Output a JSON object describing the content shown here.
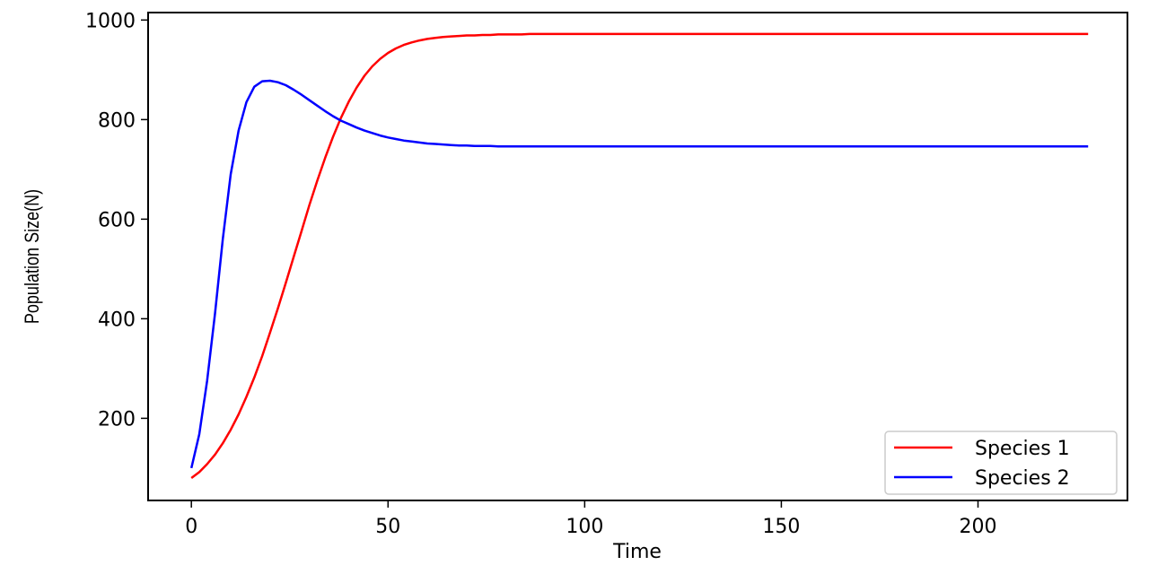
{
  "chart_data": {
    "type": "line",
    "title": "",
    "xlabel": "Time",
    "ylabel": "Population Size(N)",
    "xlim": [
      -11,
      238
    ],
    "ylim": [
      35,
      1015
    ],
    "xticks": [
      0,
      50,
      100,
      150,
      200
    ],
    "yticks": [
      200,
      400,
      600,
      800,
      1000
    ],
    "grid": false,
    "legend_position": "lower-right",
    "series": [
      {
        "name": "Species 1",
        "color": "#ff0000",
        "x": [
          0,
          2,
          4,
          6,
          8,
          10,
          12,
          14,
          16,
          18,
          20,
          22,
          24,
          26,
          28,
          30,
          32,
          34,
          36,
          38,
          40,
          42,
          44,
          46,
          48,
          50,
          52,
          54,
          56,
          58,
          60,
          62,
          64,
          66,
          68,
          70,
          72,
          74,
          76,
          78,
          80,
          82,
          84,
          86,
          88,
          90,
          92,
          94,
          96,
          98,
          100,
          105,
          110,
          120,
          130,
          140,
          150,
          160,
          170,
          180,
          190,
          200,
          210,
          220,
          228
        ],
        "values": [
          80,
          92,
          108,
          127,
          150,
          177,
          208,
          243,
          282,
          325,
          372,
          421,
          472,
          524,
          576,
          628,
          677,
          723,
          765,
          803,
          836,
          864,
          888,
          907,
          922,
          934,
          943,
          950,
          955,
          959,
          962,
          964,
          966,
          967,
          968,
          969,
          969,
          970,
          970,
          971,
          971,
          971,
          971,
          972,
          972,
          972,
          972,
          972,
          972,
          972,
          972,
          972,
          972,
          972,
          972,
          972,
          972,
          972,
          972,
          972,
          972,
          972,
          972,
          972,
          972
        ]
      },
      {
        "name": "Species 2",
        "color": "#0000ff",
        "x": [
          0,
          2,
          4,
          6,
          8,
          10,
          12,
          14,
          16,
          18,
          20,
          22,
          24,
          26,
          28,
          30,
          32,
          34,
          36,
          38,
          40,
          42,
          44,
          46,
          48,
          50,
          52,
          54,
          56,
          58,
          60,
          62,
          64,
          66,
          68,
          70,
          72,
          74,
          76,
          78,
          80,
          82,
          84,
          86,
          88,
          90,
          92,
          94,
          96,
          98,
          100,
          105,
          110,
          120,
          130,
          140,
          150,
          160,
          170,
          180,
          190,
          200,
          210,
          220,
          228
        ],
        "values": [
          100,
          168,
          275,
          410,
          560,
          690,
          778,
          835,
          866,
          877,
          878,
          875,
          869,
          860,
          850,
          839,
          828,
          817,
          807,
          798,
          791,
          784,
          778,
          773,
          768,
          764,
          761,
          758,
          756,
          754,
          752,
          751,
          750,
          749,
          748,
          748,
          747,
          747,
          747,
          746,
          746,
          746,
          746,
          746,
          746,
          746,
          746,
          746,
          746,
          746,
          746,
          746,
          746,
          746,
          746,
          746,
          746,
          746,
          746,
          746,
          746,
          746,
          746,
          746,
          746
        ]
      }
    ]
  }
}
